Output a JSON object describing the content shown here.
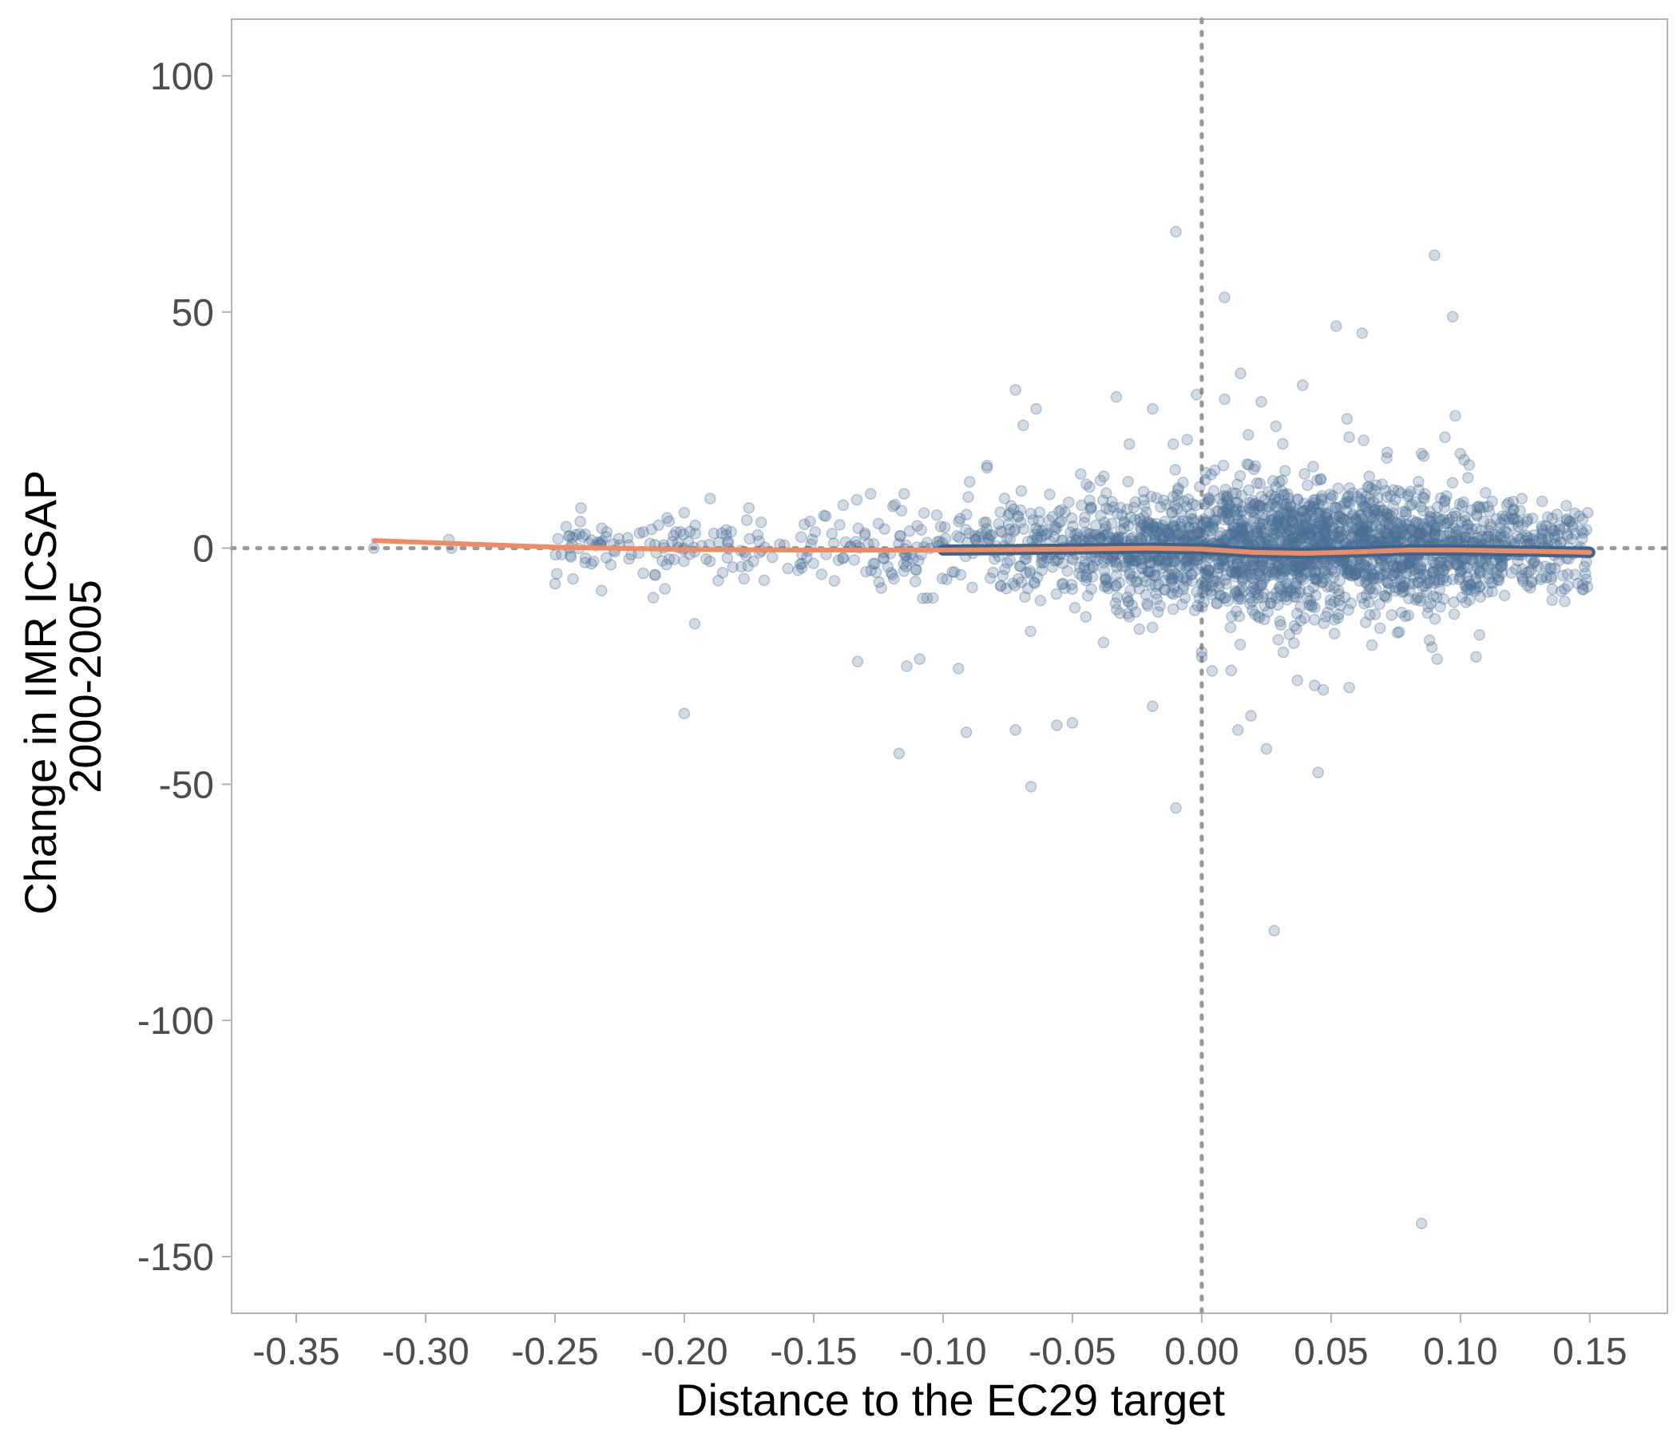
{
  "chart_data": {
    "type": "scatter",
    "xlabel": "Distance to the EC29 target",
    "ylabel_lines": [
      "Change in IMR ICSAP",
      "2000-2005"
    ],
    "xlim": [
      -0.375,
      0.18
    ],
    "ylim": [
      -162,
      112
    ],
    "x_ticks": [
      -0.35,
      -0.3,
      -0.25,
      -0.2,
      -0.15,
      -0.1,
      -0.05,
      0.0,
      0.05,
      0.1,
      0.15
    ],
    "x_tick_labels": [
      "-0.35",
      "-0.30",
      "-0.25",
      "-0.20",
      "-0.15",
      "-0.10",
      "-0.05",
      "0.00",
      "0.05",
      "0.10",
      "0.15"
    ],
    "y_ticks": [
      100,
      50,
      0,
      -50,
      -100,
      -150
    ],
    "y_tick_labels": [
      "100",
      "50",
      "0",
      "-50",
      "-100",
      "-150"
    ],
    "reference_lines": {
      "x": 0,
      "y": 0,
      "style": "dotted"
    },
    "grid": false,
    "colors": {
      "points": "#4a6f96",
      "fit_left": "#f08a62",
      "fit_right_thick": "#3d648c",
      "fit_right_thin": "#f08a62",
      "reference": "#999999",
      "frame": "#b3b3b3"
    },
    "fit_line": [
      [
        -0.32,
        1.6
      ],
      [
        -0.28,
        0.8
      ],
      [
        -0.25,
        0.2
      ],
      [
        -0.2,
        -0.3
      ],
      [
        -0.15,
        -0.4
      ],
      [
        -0.1,
        -0.4
      ],
      [
        -0.05,
        -0.2
      ],
      [
        -0.02,
        0.0
      ],
      [
        0.0,
        -0.2
      ],
      [
        0.02,
        -0.9
      ],
      [
        0.04,
        -1.1
      ],
      [
        0.06,
        -0.8
      ],
      [
        0.08,
        -0.4
      ],
      [
        0.1,
        -0.4
      ],
      [
        0.12,
        -0.6
      ],
      [
        0.15,
        -0.9
      ]
    ],
    "fit_split_x": -0.14,
    "outliers": [
      [
        -0.01,
        67
      ],
      [
        0.09,
        62
      ],
      [
        0.097,
        49
      ],
      [
        0.052,
        47
      ],
      [
        0.062,
        45.5
      ],
      [
        0.015,
        37
      ],
      [
        0.039,
        34.5
      ],
      [
        -0.072,
        33.5
      ],
      [
        -0.033,
        32
      ],
      [
        0.023,
        31
      ],
      [
        -0.064,
        29.5
      ],
      [
        -0.019,
        29.5
      ],
      [
        -0.002,
        32.5
      ],
      [
        0.098,
        28
      ],
      [
        -0.069,
        26
      ],
      [
        0.094,
        23.5
      ],
      [
        0.057,
        23.5
      ],
      [
        0.018,
        24
      ],
      [
        -0.028,
        22
      ],
      [
        -0.011,
        22
      ],
      [
        -0.083,
        17.5
      ],
      [
        0.1,
        20
      ],
      [
        0.085,
        20
      ],
      [
        -0.01,
        -55
      ],
      [
        0.045,
        -47.5
      ],
      [
        -0.066,
        -50.5
      ],
      [
        0.028,
        -81
      ],
      [
        0.085,
        -143
      ],
      [
        -0.117,
        -43.5
      ],
      [
        -0.091,
        -39
      ],
      [
        -0.072,
        -38.5
      ],
      [
        -0.056,
        -37.5
      ],
      [
        -0.05,
        -37
      ],
      [
        0.014,
        -38.5
      ],
      [
        0.025,
        -42.5
      ],
      [
        -0.2,
        -35
      ],
      [
        -0.019,
        -33.5
      ],
      [
        0.019,
        -35.5
      ],
      [
        -0.133,
        -24
      ],
      [
        -0.114,
        -25
      ],
      [
        -0.109,
        -23.5
      ],
      [
        -0.094,
        -25.5
      ],
      [
        0.047,
        -30
      ],
      [
        0.057,
        -29.5
      ],
      [
        0.037,
        -28
      ],
      [
        0.089,
        -21
      ],
      [
        0.106,
        -23
      ],
      [
        0.091,
        -23.5
      ],
      [
        -0.196,
        -16
      ],
      [
        -0.212,
        -10.5
      ],
      [
        -0.232,
        -9
      ],
      [
        -0.243,
        -6.5
      ],
      [
        -0.291,
        1.8
      ],
      [
        -0.32,
        0.0
      ],
      [
        -0.29,
        0.0
      ],
      [
        -0.24,
        8.5
      ],
      [
        -0.2,
        7.5
      ],
      [
        -0.19,
        10.5
      ],
      [
        -0.175,
        8.5
      ],
      [
        -0.128,
        11.5
      ],
      [
        -0.115,
        11.5
      ],
      [
        -0.083,
        17
      ],
      [
        0.004,
        -26
      ],
      [
        0.0,
        -22
      ],
      [
        0.0,
        -23
      ],
      [
        -0.038,
        -20
      ]
    ],
    "bulk_cloud": {
      "n_points": 2600,
      "x_range": [
        -0.25,
        0.15
      ],
      "x_dense_center": 0.04,
      "y_spread_center": 7,
      "y_spread_edge": 3,
      "fill_opacity": 0.25
    }
  }
}
